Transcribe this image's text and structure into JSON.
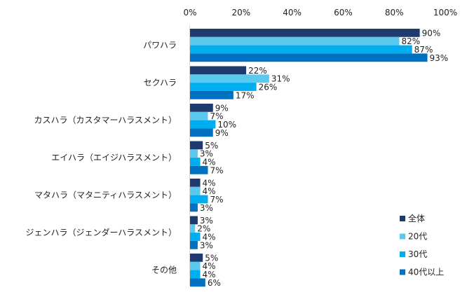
{
  "chart_data": {
    "type": "bar",
    "orientation": "horizontal",
    "categories": [
      "パワハラ",
      "セクハラ",
      "カスハラ（カスタマーハラスメント）",
      "エイハラ（エイジハラスメント）",
      "マタハラ（マタニティハラスメント）",
      "ジェンハラ（ジェンダーハラスメント）",
      "その他"
    ],
    "series": [
      {
        "name": "全体",
        "color": "#1F3A6E",
        "values": [
          90,
          22,
          9,
          5,
          4,
          3,
          5
        ]
      },
      {
        "name": "20代",
        "color": "#5BC8EE",
        "values": [
          82,
          31,
          7,
          3,
          4,
          2,
          4
        ]
      },
      {
        "name": "30代",
        "color": "#00AEEF",
        "values": [
          87,
          26,
          10,
          4,
          7,
          4,
          4
        ]
      },
      {
        "name": "40代以上",
        "color": "#0070C0",
        "values": [
          93,
          17,
          9,
          7,
          3,
          3,
          6
        ]
      }
    ],
    "xlim": [
      0,
      100
    ],
    "xticks": [
      "0%",
      "20%",
      "40%",
      "60%",
      "80%",
      "100%"
    ],
    "value_suffix": "%",
    "grid": false,
    "legend_position": "bottom-right"
  }
}
